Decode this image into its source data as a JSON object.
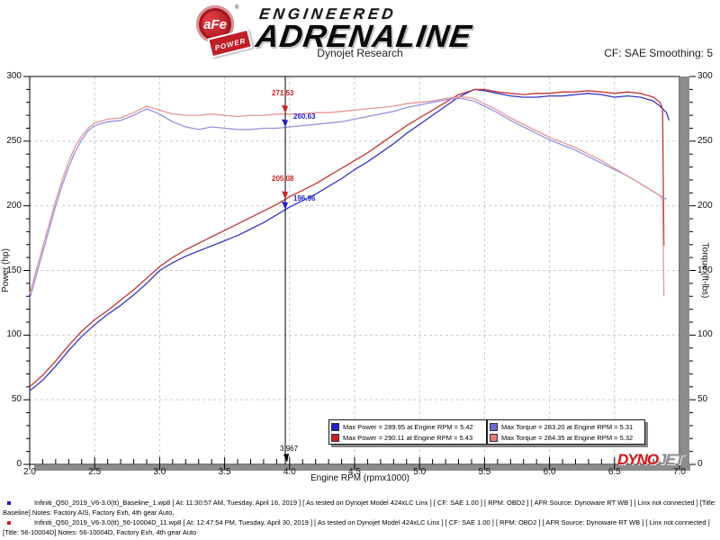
{
  "header": {
    "brand": {
      "badge_text": "aFe",
      "badge_sub": "POWER",
      "reg": "®",
      "line1": "ENGINEERED",
      "line2": "ADRENALINE"
    },
    "subtitle": "Dynojet Research",
    "smoothing": "CF: SAE Smoothing: 5"
  },
  "chart_data": {
    "type": "line",
    "x_axis": {
      "label": "Engine RPM (rpmx1000)",
      "min": 2.0,
      "max": 7.0,
      "major_ticks": [
        "2.0",
        "2.5",
        "3.0",
        "3.5",
        "4.0",
        "4.5",
        "5.0",
        "5.5",
        "6.0",
        "6.5",
        "7.0"
      ],
      "minor_step": 0.1
    },
    "y_left": {
      "label": "Power (hp)",
      "min": 0,
      "max": 300,
      "major_ticks": [
        "0",
        "50",
        "100",
        "150",
        "200",
        "250",
        "300"
      ],
      "minor_step": 10
    },
    "y_right": {
      "label": "Torque (ft-lbs)",
      "min": 0,
      "max": 300,
      "major_ticks": [
        "0",
        "50",
        "100",
        "150",
        "200",
        "250",
        "300"
      ],
      "minor_step": 10
    },
    "grid": "dashed-major",
    "series": [
      {
        "name": "Power Baseline",
        "unit": "hp",
        "color": "#3434c4",
        "points": [
          [
            2.0,
            57
          ],
          [
            2.1,
            65
          ],
          [
            2.2,
            76
          ],
          [
            2.3,
            88
          ],
          [
            2.4,
            99
          ],
          [
            2.5,
            108
          ],
          [
            2.6,
            116
          ],
          [
            2.7,
            123
          ],
          [
            2.8,
            131
          ],
          [
            2.9,
            140
          ],
          [
            3.0,
            150
          ],
          [
            3.1,
            156
          ],
          [
            3.2,
            161
          ],
          [
            3.3,
            165
          ],
          [
            3.4,
            169
          ],
          [
            3.5,
            173
          ],
          [
            3.6,
            177
          ],
          [
            3.7,
            182
          ],
          [
            3.8,
            187
          ],
          [
            3.9,
            193
          ],
          [
            4.0,
            199
          ],
          [
            4.1,
            204
          ],
          [
            4.2,
            209
          ],
          [
            4.3,
            215
          ],
          [
            4.4,
            221
          ],
          [
            4.5,
            228
          ],
          [
            4.6,
            234
          ],
          [
            4.7,
            241
          ],
          [
            4.8,
            248
          ],
          [
            4.9,
            256
          ],
          [
            5.0,
            263
          ],
          [
            5.1,
            270
          ],
          [
            5.2,
            277
          ],
          [
            5.3,
            284
          ],
          [
            5.42,
            290
          ],
          [
            5.5,
            289
          ],
          [
            5.6,
            287
          ],
          [
            5.7,
            285
          ],
          [
            5.8,
            284
          ],
          [
            5.9,
            284
          ],
          [
            6.0,
            285
          ],
          [
            6.1,
            285
          ],
          [
            6.2,
            286
          ],
          [
            6.3,
            287
          ],
          [
            6.4,
            286
          ],
          [
            6.5,
            284
          ],
          [
            6.6,
            285
          ],
          [
            6.7,
            284
          ],
          [
            6.8,
            281
          ],
          [
            6.85,
            277
          ],
          [
            6.9,
            272
          ],
          [
            6.92,
            266
          ]
        ]
      },
      {
        "name": "Power 56-10004D",
        "unit": "hp",
        "color": "#c43434",
        "points": [
          [
            2.0,
            60
          ],
          [
            2.1,
            69
          ],
          [
            2.2,
            80
          ],
          [
            2.3,
            92
          ],
          [
            2.4,
            103
          ],
          [
            2.5,
            112
          ],
          [
            2.6,
            119
          ],
          [
            2.7,
            127
          ],
          [
            2.8,
            135
          ],
          [
            2.9,
            144
          ],
          [
            3.0,
            153
          ],
          [
            3.1,
            160
          ],
          [
            3.2,
            166
          ],
          [
            3.3,
            171
          ],
          [
            3.4,
            176
          ],
          [
            3.5,
            181
          ],
          [
            3.6,
            186
          ],
          [
            3.7,
            191
          ],
          [
            3.8,
            196
          ],
          [
            3.9,
            201
          ],
          [
            4.0,
            207
          ],
          [
            4.1,
            212
          ],
          [
            4.2,
            217
          ],
          [
            4.3,
            223
          ],
          [
            4.4,
            229
          ],
          [
            4.5,
            235
          ],
          [
            4.6,
            241
          ],
          [
            4.7,
            248
          ],
          [
            4.8,
            255
          ],
          [
            4.9,
            262
          ],
          [
            5.0,
            268
          ],
          [
            5.1,
            274
          ],
          [
            5.2,
            280
          ],
          [
            5.3,
            286
          ],
          [
            5.43,
            290
          ],
          [
            5.5,
            290
          ],
          [
            5.6,
            288
          ],
          [
            5.7,
            287
          ],
          [
            5.8,
            286
          ],
          [
            5.9,
            287
          ],
          [
            6.0,
            287
          ],
          [
            6.1,
            288
          ],
          [
            6.2,
            288
          ],
          [
            6.3,
            289
          ],
          [
            6.4,
            288
          ],
          [
            6.5,
            287
          ],
          [
            6.6,
            288
          ],
          [
            6.7,
            287
          ],
          [
            6.8,
            284
          ],
          [
            6.85,
            280
          ],
          [
            6.87,
            275
          ],
          [
            6.88,
            169
          ]
        ]
      },
      {
        "name": "Torque Baseline",
        "unit": "ft-lbs",
        "color": "#9393e0",
        "points": [
          [
            2.0,
            128
          ],
          [
            2.05,
            146
          ],
          [
            2.1,
            164
          ],
          [
            2.15,
            182
          ],
          [
            2.2,
            200
          ],
          [
            2.25,
            216
          ],
          [
            2.3,
            230
          ],
          [
            2.35,
            242
          ],
          [
            2.4,
            251
          ],
          [
            2.45,
            258
          ],
          [
            2.5,
            262
          ],
          [
            2.6,
            265
          ],
          [
            2.7,
            266
          ],
          [
            2.8,
            270
          ],
          [
            2.9,
            275
          ],
          [
            3.0,
            271
          ],
          [
            3.1,
            265
          ],
          [
            3.2,
            261
          ],
          [
            3.3,
            259
          ],
          [
            3.4,
            261
          ],
          [
            3.5,
            260
          ],
          [
            3.6,
            259
          ],
          [
            3.7,
            259
          ],
          [
            3.8,
            260
          ],
          [
            3.9,
            260
          ],
          [
            4.0,
            261
          ],
          [
            4.1,
            262
          ],
          [
            4.2,
            263
          ],
          [
            4.3,
            264
          ],
          [
            4.4,
            265
          ],
          [
            4.5,
            267
          ],
          [
            4.6,
            269
          ],
          [
            4.7,
            271
          ],
          [
            4.8,
            273
          ],
          [
            4.9,
            276
          ],
          [
            5.0,
            278
          ],
          [
            5.1,
            280
          ],
          [
            5.2,
            282
          ],
          [
            5.31,
            283.2
          ],
          [
            5.42,
            281
          ],
          [
            5.5,
            277
          ],
          [
            5.6,
            272
          ],
          [
            5.7,
            266
          ],
          [
            5.8,
            261
          ],
          [
            5.9,
            256
          ],
          [
            6.0,
            251
          ],
          [
            6.1,
            247
          ],
          [
            6.2,
            243
          ],
          [
            6.3,
            238
          ],
          [
            6.4,
            233
          ],
          [
            6.5,
            228
          ],
          [
            6.6,
            223
          ],
          [
            6.7,
            217
          ],
          [
            6.8,
            211
          ],
          [
            6.9,
            205
          ]
        ]
      },
      {
        "name": "Torque 56-10004D",
        "unit": "ft-lbs",
        "color": "#e89595",
        "points": [
          [
            2.0,
            132
          ],
          [
            2.05,
            150
          ],
          [
            2.1,
            168
          ],
          [
            2.15,
            186
          ],
          [
            2.2,
            204
          ],
          [
            2.25,
            220
          ],
          [
            2.3,
            234
          ],
          [
            2.35,
            246
          ],
          [
            2.4,
            254
          ],
          [
            2.45,
            260
          ],
          [
            2.5,
            264
          ],
          [
            2.6,
            267
          ],
          [
            2.7,
            268
          ],
          [
            2.8,
            272
          ],
          [
            2.9,
            277
          ],
          [
            3.0,
            274
          ],
          [
            3.1,
            271
          ],
          [
            3.2,
            270
          ],
          [
            3.3,
            270
          ],
          [
            3.4,
            271
          ],
          [
            3.5,
            270
          ],
          [
            3.6,
            269
          ],
          [
            3.7,
            270
          ],
          [
            3.8,
            270
          ],
          [
            3.9,
            271
          ],
          [
            4.0,
            271
          ],
          [
            4.1,
            271
          ],
          [
            4.2,
            272
          ],
          [
            4.3,
            272
          ],
          [
            4.4,
            273
          ],
          [
            4.5,
            274
          ],
          [
            4.6,
            275
          ],
          [
            4.7,
            276
          ],
          [
            4.8,
            277
          ],
          [
            4.9,
            279
          ],
          [
            5.0,
            280
          ],
          [
            5.1,
            281
          ],
          [
            5.2,
            283
          ],
          [
            5.32,
            284.4
          ],
          [
            5.42,
            283
          ],
          [
            5.5,
            279
          ],
          [
            5.6,
            274
          ],
          [
            5.7,
            268
          ],
          [
            5.8,
            263
          ],
          [
            5.9,
            258
          ],
          [
            6.0,
            253
          ],
          [
            6.1,
            249
          ],
          [
            6.2,
            245
          ],
          [
            6.3,
            240
          ],
          [
            6.4,
            235
          ],
          [
            6.5,
            229
          ],
          [
            6.6,
            223
          ],
          [
            6.7,
            217
          ],
          [
            6.8,
            211
          ],
          [
            6.85,
            208
          ],
          [
            6.87,
            205
          ],
          [
            6.88,
            130
          ]
        ]
      }
    ],
    "cursor": {
      "rpm": 3.967,
      "label": "3.967",
      "values": [
        {
          "text": "271.53",
          "value": 271.53,
          "color": "#cc2222",
          "side": "left"
        },
        {
          "text": "260.63",
          "value": 260.63,
          "color": "#2222cc",
          "side": "right"
        },
        {
          "text": "205.08",
          "value": 205.08,
          "color": "#cc2222",
          "side": "left"
        },
        {
          "text": "196.96",
          "value": 196.96,
          "color": "#2222cc",
          "side": "right"
        }
      ]
    },
    "legend": {
      "position": "bottom-center",
      "boxes": [
        [
          {
            "marker": "#2020cc",
            "text": "Max Power = 289.95 at Engine RPM = 5.42"
          },
          {
            "marker": "#cc2020",
            "text": "Max Power = 290.11 at Engine RPM = 5.43"
          }
        ],
        [
          {
            "marker": "#6666dd",
            "text": "Max Torque = 283.20 at Engine RPM = 5.31"
          },
          {
            "marker": "#ee7777",
            "text": "Max Torque = 284.35 at Engine RPM = 5.32"
          }
        ]
      ]
    }
  },
  "watermark": {
    "dyno": "DYNO",
    "jet": "JET"
  },
  "annotations": [
    {
      "bullet": "#2020cc",
      "line1": "Infiniti_Q50_2019_V6-3.0(tt)_Baseline_1.wp8 [ At: 11:30:57 AM, Tuesday, April 16, 2019 ] [ As tested on Dynojet Model 424xLC Linx ] [ CF: SAE 1.00 ] [ RPM: OBD2 ] [ AFR Source: Dynoware RT WB ] [ Linx not connected ] [Title:",
      "line2": "Baseline]  Notes: Factory AIS, Factory Exh, 4th gear Auto,"
    },
    {
      "bullet": "#cc2020",
      "line1": "Infiniti_Q50_2019_V6-3.0(tt)_56-10004D_11.wp8 [ At: 12:47:54 PM, Tuesday, April 30, 2019 ] [ As tested on Dynojet Model 424xLC Linx ] [ CF: SAE 1.00 ] [ RPM: OBD2 ] [ AFR Source: Dynoware RT WB ] [ Linx not connected ]",
      "line2": "[Title: 56-10004D]  Notes: 56-10004D, Factory Exh, 4th gear Auto"
    }
  ]
}
